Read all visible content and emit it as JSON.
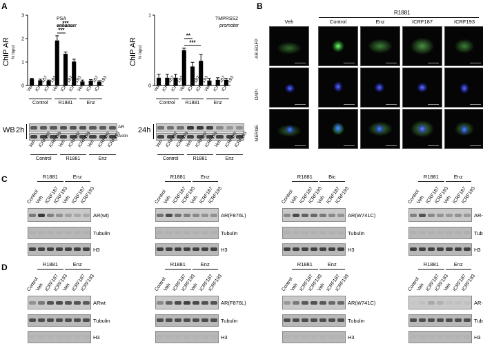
{
  "panel_labels": {
    "a": "A",
    "b": "B",
    "c": "C",
    "d": "D"
  },
  "chip_psa": {
    "ylabel": "ChIP AR",
    "ysub": "% Input",
    "title": "PSA",
    "subtitle": "enhancer",
    "yticks": [
      "0",
      "1",
      "2",
      "3"
    ],
    "sig1": "***",
    "sig2": "***"
  },
  "chip_tmprss2": {
    "ylabel": "ChIP AR",
    "ysub": "% Input",
    "title": "TMPRSS2",
    "subtitle": "promoter",
    "yticks": [
      "0",
      "1"
    ],
    "sig1": "**",
    "sig2": "***"
  },
  "lanes": [
    "Veh",
    "ICRF187",
    "ICRF193",
    "Veh",
    "ICRF187",
    "ICRF193",
    "Veh",
    "ICRF187",
    "ICRF193"
  ],
  "groups": [
    "Control",
    "R1881",
    "Enz"
  ],
  "wb": {
    "label": "WB",
    "time1": "2h",
    "time2": "24h",
    "ar": "AR",
    "actin": "Actin"
  },
  "microscopy": {
    "group": "R1881",
    "cols": [
      "Veh",
      "Control",
      "Enz",
      "ICRF187",
      "ICRF193"
    ],
    "rows": [
      "AR-EGFP",
      "DAPI",
      "MERGE"
    ]
  },
  "blot_lanes": [
    "Control",
    "Veh",
    "ICRF187",
    "ICRF193",
    "Veh",
    "ICRF187",
    "ICRF193"
  ],
  "panel_c": {
    "p1": {
      "g1": "R1881",
      "g2": "Enz",
      "target": "AR(wt)"
    },
    "p2": {
      "g1": "R1881",
      "g2": "Enz",
      "target": "AR(F876L)"
    },
    "p3": {
      "g1": "R1881",
      "g2": "Bic",
      "target": "AR(W741C)"
    },
    "p4": {
      "g1": "R1881",
      "g2": "Enz",
      "target": "AR-V7"
    }
  },
  "panel_d": {
    "p1": {
      "g1": "R1881",
      "g2": "Enz",
      "target": "ARwt"
    },
    "p2": {
      "g1": "R1881",
      "g2": "Enz",
      "target": "AR(F876L)"
    },
    "p3": {
      "g1": "R1881",
      "g2": "Enz",
      "target": "AR(W741C)"
    },
    "p4": {
      "g1": "R1881",
      "g2": "Enz",
      "target": "AR-V7"
    }
  },
  "loading": {
    "tubulin": "Tubulin",
    "h3": "H3"
  },
  "chart_data": [
    {
      "type": "bar",
      "title": "PSA",
      "subtitle": "enhancer",
      "ylabel": "ChIP AR % Input",
      "categories": [
        "Control Veh",
        "Control ICRF187",
        "Control ICRF193",
        "R1881 Veh",
        "R1881 ICRF187",
        "R1881 ICRF193",
        "Enz Veh",
        "Enz ICRF187",
        "Enz ICRF193"
      ],
      "values": [
        0.28,
        0.22,
        0.2,
        1.92,
        1.35,
        1.02,
        0.17,
        0.2,
        0.16
      ],
      "errors": [
        0.03,
        0.05,
        0.03,
        0.2,
        0.08,
        0.1,
        0.06,
        0.05,
        0.04
      ],
      "ylim": [
        0,
        3
      ]
    },
    {
      "type": "bar",
      "title": "TMPRSS2",
      "subtitle": "promoter",
      "ylabel": "ChIP AR % Input",
      "categories": [
        "Control Veh",
        "Control ICRF187",
        "Control ICRF193",
        "R1881 Veh",
        "R1881 ICRF187",
        "R1881 ICRF193",
        "Enz Veh",
        "Enz ICRF187",
        "Enz ICRF193"
      ],
      "values": [
        0.11,
        0.11,
        0.11,
        0.5,
        0.27,
        0.35,
        0.07,
        0.08,
        0.08
      ],
      "errors": [
        0.05,
        0.05,
        0.05,
        0.03,
        0.06,
        0.09,
        0.03,
        0.03,
        0.02
      ],
      "ylim": [
        0,
        1
      ]
    }
  ]
}
